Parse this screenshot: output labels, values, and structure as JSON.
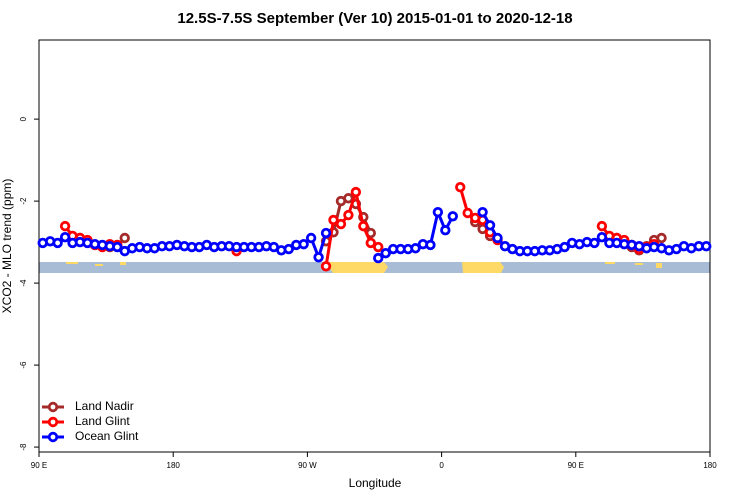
{
  "chart_data": {
    "type": "line",
    "title": "12.5S-7.5S September (Ver 10)   2015-01-01 to 2020-12-18",
    "x_label": "Longitude",
    "y_label": "XCO2 - MLO trend (ppm)",
    "xlim": [
      90,
      540
    ],
    "xticks": [
      {
        "value": 90,
        "label": "90 E"
      },
      180,
      {
        "value": 270,
        "label": "90 W"
      },
      {
        "value": 360,
        "label": "0"
      },
      {
        "value": 450,
        "label": "90 E"
      },
      {
        "value": 540,
        "label": "180"
      }
    ],
    "ylim": [
      -8.12,
      1.93
    ],
    "yticks": [
      0,
      -2,
      -4,
      -6,
      -8
    ],
    "legend": "bottomleft",
    "x": [
      92.5,
      97.5,
      102.5,
      107.5,
      112.5,
      117.5,
      122.5,
      127.5,
      132.5,
      137.5,
      142.5,
      147.5,
      152.5,
      157.5,
      162.5,
      167.5,
      172.5,
      177.5,
      182.5,
      187.5,
      192.5,
      197.5,
      202.5,
      207.5,
      212.5,
      217.5,
      222.5,
      227.5,
      232.5,
      237.5,
      242.5,
      247.5,
      252.5,
      257.5,
      262.5,
      267.5,
      272.5,
      277.5,
      282.5,
      287.5,
      292.5,
      297.5,
      302.5,
      307.5,
      312.5,
      317.5,
      322.5,
      327.5,
      332.5,
      337.5,
      342.5,
      347.5,
      352.5,
      357.5,
      362.5,
      367.5,
      372.5,
      377.5,
      382.5,
      387.5,
      392.5,
      397.5,
      402.5,
      407.5,
      412.5,
      417.5,
      422.5,
      427.5,
      432.5,
      437.5,
      442.5,
      447.5,
      452.5,
      457.5,
      462.5,
      467.5,
      472.5,
      477.5,
      482.5,
      487.5,
      492.5,
      497.5,
      502.5,
      507.5,
      512.5,
      517.5,
      522.5,
      527.5,
      532.5,
      537.5
    ],
    "series": [
      {
        "name": "Land Nadir",
        "color": "#a52a2a",
        "values": [
          null,
          null,
          null,
          null,
          -2.88,
          -2.9,
          -2.98,
          -3.07,
          -3.1,
          -3.12,
          -3.1,
          -2.9,
          null,
          null,
          null,
          null,
          null,
          null,
          null,
          null,
          null,
          null,
          null,
          null,
          null,
          null,
          null,
          null,
          null,
          null,
          null,
          null,
          null,
          null,
          null,
          null,
          null,
          null,
          -2.98,
          -2.76,
          -2.0,
          -1.93,
          -2.07,
          -2.39,
          -2.78,
          null,
          null,
          null,
          null,
          null,
          null,
          null,
          null,
          null,
          null,
          null,
          null,
          null,
          -2.51,
          -2.68,
          -2.85,
          null,
          null,
          null,
          null,
          null,
          null,
          null,
          null,
          null,
          null,
          null,
          null,
          null,
          null,
          null,
          -2.88,
          -2.9,
          -3.02,
          -3.12,
          -3.2,
          -3.1,
          -2.95,
          -2.9,
          null,
          null,
          null,
          null,
          null,
          null
        ]
      },
      {
        "name": "Land Glint",
        "color": "#ff0000",
        "values": [
          null,
          null,
          null,
          -2.61,
          -2.85,
          -2.9,
          -2.95,
          -3.07,
          -3.12,
          -3.05,
          -3.07,
          null,
          null,
          null,
          null,
          null,
          null,
          null,
          null,
          null,
          null,
          null,
          null,
          null,
          null,
          null,
          -3.22,
          null,
          null,
          null,
          null,
          null,
          null,
          null,
          null,
          null,
          null,
          null,
          -3.59,
          -2.46,
          -2.56,
          -2.34,
          -1.78,
          -2.61,
          -3.02,
          -3.12,
          null,
          null,
          null,
          null,
          null,
          null,
          null,
          null,
          null,
          null,
          -1.66,
          -2.29,
          -2.41,
          -2.46,
          -2.76,
          -2.95,
          null,
          null,
          null,
          null,
          null,
          null,
          null,
          null,
          null,
          null,
          null,
          null,
          null,
          -2.61,
          -2.85,
          -2.9,
          -2.95,
          -3.07,
          -3.17,
          -3.12,
          -3.05,
          null,
          null,
          null,
          null,
          null,
          null,
          null
        ]
      },
      {
        "name": "Ocean Glint",
        "color": "#0000ff",
        "values": [
          -3.02,
          -2.98,
          -3.02,
          -2.88,
          -3.02,
          -3.0,
          -3.02,
          -3.05,
          -3.07,
          -3.1,
          -3.12,
          -3.22,
          -3.15,
          -3.12,
          -3.15,
          -3.15,
          -3.1,
          -3.1,
          -3.07,
          -3.1,
          -3.12,
          -3.12,
          -3.07,
          -3.12,
          -3.1,
          -3.1,
          -3.12,
          -3.12,
          -3.12,
          -3.12,
          -3.1,
          -3.12,
          -3.2,
          -3.17,
          -3.07,
          -3.05,
          -2.9,
          -3.37,
          -2.78,
          null,
          null,
          null,
          null,
          null,
          null,
          -3.39,
          -3.27,
          -3.17,
          -3.17,
          -3.17,
          -3.15,
          -3.05,
          -3.07,
          -2.27,
          -2.71,
          -2.37,
          null,
          null,
          null,
          -2.27,
          -2.59,
          -2.9,
          -3.1,
          -3.17,
          -3.22,
          -3.22,
          -3.22,
          -3.2,
          -3.2,
          -3.17,
          -3.12,
          -3.02,
          -3.05,
          -3.0,
          -3.02,
          -2.88,
          -3.02,
          -3.02,
          -3.05,
          -3.07,
          -3.1,
          -3.15,
          -3.12,
          -3.15,
          -3.2,
          -3.17,
          -3.1,
          -3.15,
          -3.1,
          -3.1
        ]
      }
    ]
  }
}
